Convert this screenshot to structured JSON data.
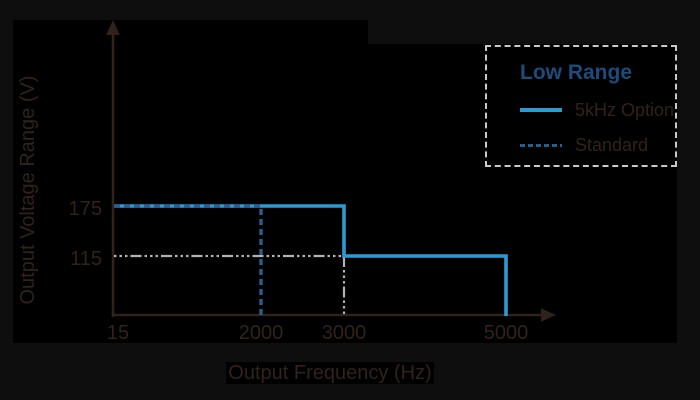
{
  "colors": {
    "page_bg": "#0e0e0e",
    "panel_bg": "#000000",
    "axis_ink": "#31221b",
    "solid_blue": "#2d9ad4",
    "dashed_navy": "#2b5c8e",
    "guide_gray": "#b4b2af",
    "legend_title_blue": "#1d4c7c",
    "legend_border_gray": "#c9c9c9"
  },
  "chart_data": {
    "type": "line",
    "title": "",
    "xlabel": "Output Frequency (Hz)",
    "ylabel": "Output Voltage Range (V)",
    "x_scale": "schematic",
    "x_ticks": [
      15,
      2000,
      3000,
      5000
    ],
    "y_ticks": [
      115,
      175
    ],
    "grid": false,
    "legend_title": "Low Range",
    "legend_position": "top-right",
    "series": [
      {
        "name": "5kHz Option",
        "style": "solid",
        "color": "#2d9ad4",
        "points": [
          [
            15,
            175
          ],
          [
            3000,
            175
          ],
          [
            3000,
            115
          ],
          [
            5000,
            115
          ],
          [
            5000,
            0
          ]
        ]
      },
      {
        "name": "Standard",
        "style": "dashed",
        "color": "#2b5c8e",
        "points": [
          [
            15,
            175
          ],
          [
            2000,
            175
          ],
          [
            2000,
            0
          ]
        ]
      }
    ],
    "guide_lines": [
      {
        "name": "115 V level guide",
        "style": "dash-dot",
        "color": "#b4b2af",
        "points": [
          [
            15,
            115
          ],
          [
            3000,
            115
          ],
          [
            3000,
            0
          ]
        ]
      }
    ]
  }
}
